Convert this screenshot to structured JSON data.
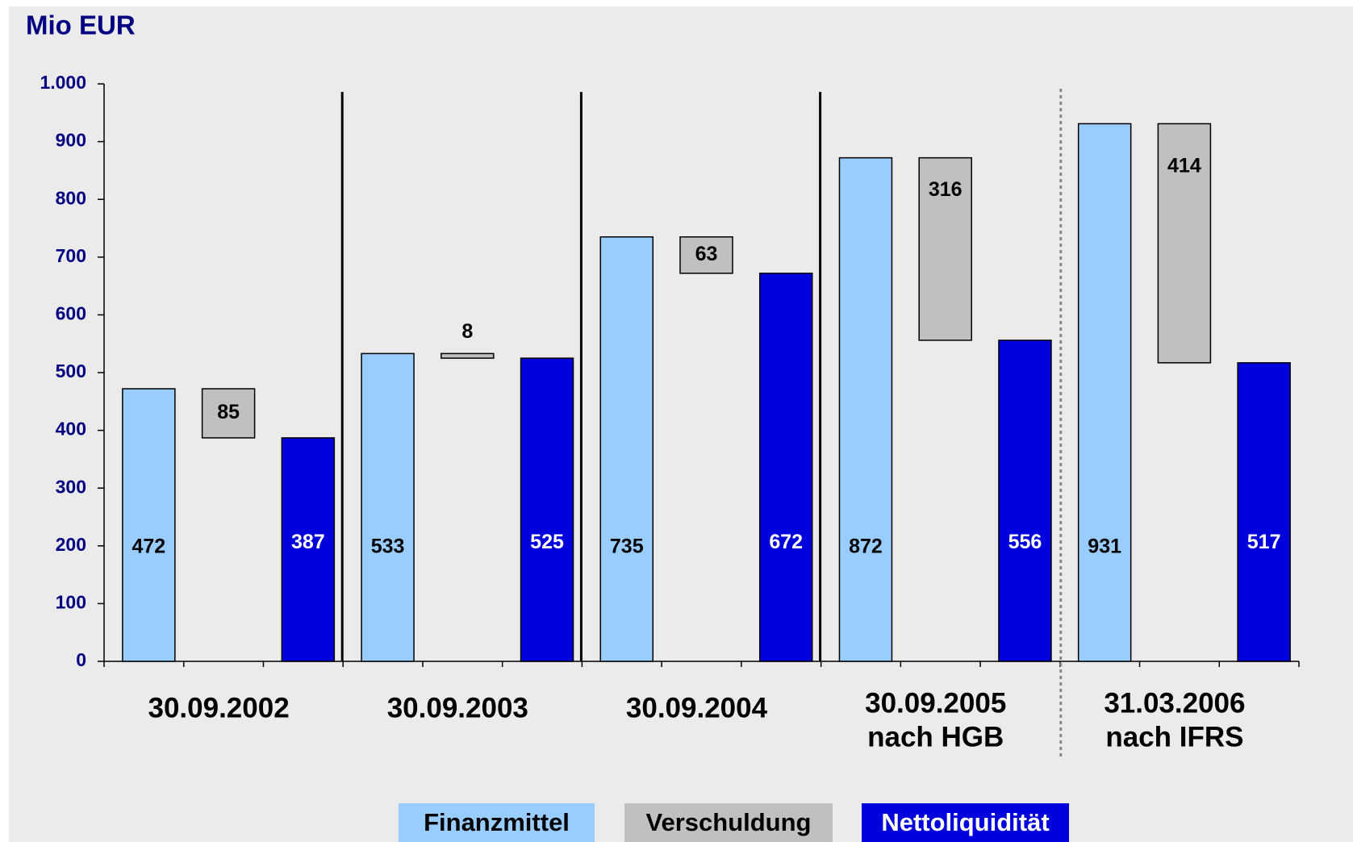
{
  "chart_data": {
    "type": "bar",
    "title": "Mio EUR",
    "categories": [
      [
        "30.09.2002"
      ],
      [
        "30.09.2003"
      ],
      [
        "30.09.2004"
      ],
      [
        "30.09.2005",
        "nach HGB"
      ],
      [
        "31.03.2006",
        "nach IFRS"
      ]
    ],
    "series": [
      {
        "name": "Finanzmittel",
        "color": "#99ccff",
        "values": [
          472,
          533,
          735,
          872,
          931
        ]
      },
      {
        "name": "Verschuldung",
        "color": "#c0c0c0",
        "values": [
          85,
          8,
          63,
          316,
          414
        ]
      },
      {
        "name": "Nettoliquidität",
        "color": "#0000dd",
        "values": [
          387,
          525,
          672,
          556,
          517
        ]
      }
    ],
    "ylim": [
      0,
      1000
    ],
    "yticks": [
      0,
      100,
      200,
      300,
      400,
      500,
      600,
      700,
      800,
      900,
      {
        "value": 1000,
        "label": "1.000"
      }
    ],
    "legend": "bottom"
  }
}
